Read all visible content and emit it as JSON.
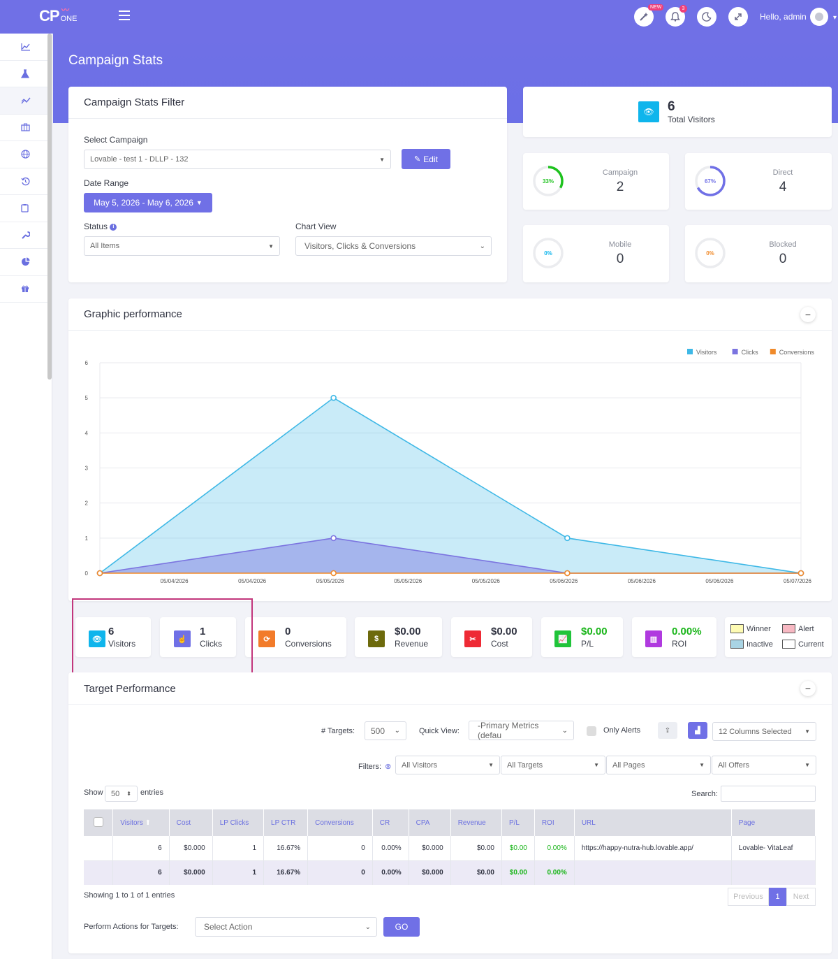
{
  "topbar": {
    "logo_main": "CP",
    "logo_sub": "ONE",
    "new_badge": "NEW",
    "notif_count": "3",
    "greeting": "Hello, admin"
  },
  "page": {
    "title": "Campaign Stats"
  },
  "sidebar": {
    "items": [
      {
        "icon": "line-chart-icon"
      },
      {
        "icon": "flask-icon"
      },
      {
        "icon": "trend-icon"
      },
      {
        "icon": "briefcase-icon"
      },
      {
        "icon": "globe-icon"
      },
      {
        "icon": "history-icon"
      },
      {
        "icon": "clipboard-icon"
      },
      {
        "icon": "wrench-icon"
      },
      {
        "icon": "pie-icon"
      },
      {
        "icon": "gift-icon"
      }
    ]
  },
  "filter": {
    "title": "Campaign Stats Filter",
    "select_campaign_label": "Select Campaign",
    "campaign_value": "Lovable - test 1  -  DLLP  -  132",
    "edit_label": "Edit",
    "date_range_label": "Date Range",
    "date_range_value": "May 5, 2026 - May 6, 2026",
    "status_label": "Status",
    "status_value": "All Items",
    "chart_view_label": "Chart View",
    "chart_view_value": "Visitors, Clicks & Conversions"
  },
  "stats": {
    "total_visitors_value": "6",
    "total_visitors_label": "Total Visitors",
    "campaign": {
      "label": "Campaign",
      "value": "2",
      "pct": "33%",
      "fraction": 0.33,
      "color": "#1ec21e"
    },
    "direct": {
      "label": "Direct",
      "value": "4",
      "pct": "67%",
      "fraction": 0.67,
      "color": "#7070e6"
    },
    "mobile": {
      "label": "Mobile",
      "value": "0",
      "pct": "0%",
      "fraction": 0,
      "color": "#0fb5ec"
    },
    "blocked": {
      "label": "Blocked",
      "value": "0",
      "pct": "0%",
      "fraction": 0,
      "color": "#f08a2a"
    }
  },
  "graph": {
    "title": "Graphic performance"
  },
  "chart_data": {
    "type": "area",
    "x": [
      "05/04/2026",
      "05/05/2026",
      "05/06/2026",
      "05/07/2026"
    ],
    "tick_labels": [
      "05/04/2026",
      "05/04/2026",
      "05/05/2026",
      "05/05/2026",
      "05/05/2026",
      "05/06/2026",
      "05/06/2026",
      "05/06/2026",
      "05/07/2026"
    ],
    "series": [
      {
        "name": "Visitors",
        "values": [
          0,
          5,
          1,
          0
        ],
        "color": "#3eb8e6"
      },
      {
        "name": "Clicks",
        "values": [
          0,
          1,
          0,
          0
        ],
        "color": "#7b74e0"
      },
      {
        "name": "Conversions",
        "values": [
          0,
          0,
          0,
          0
        ],
        "color": "#f08a2a"
      }
    ],
    "ylim": [
      0,
      6
    ],
    "yticks": [
      "0",
      "1",
      "2",
      "3",
      "4",
      "5",
      "6"
    ],
    "legend": "top-right",
    "grid": true
  },
  "tiles": {
    "visitors": {
      "value": "6",
      "label": "Visitors"
    },
    "clicks": {
      "value": "1",
      "label": "Clicks"
    },
    "conversions": {
      "value": "0",
      "label": "Conversions"
    },
    "revenue": {
      "value": "$0.00",
      "label": "Revenue"
    },
    "cost": {
      "value": "$0.00",
      "label": "Cost"
    },
    "pl": {
      "value": "$0.00",
      "label": "P/L"
    },
    "roi": {
      "value": "0.00%",
      "label": "ROI"
    }
  },
  "legend_keys": {
    "winner": "Winner",
    "alert": "Alert",
    "inactive": "Inactive",
    "current": "Current"
  },
  "targets": {
    "title": "Target Performance",
    "targets_label": "# Targets:",
    "targets_value": "500",
    "quick_view_label": "Quick View:",
    "quick_view_value": "-Primary Metrics (defau",
    "only_alerts_label": "Only Alerts",
    "columns_value": "12 Columns Selected",
    "filters_label": "Filters:",
    "filter_visitors": "All Visitors",
    "filter_targets": "All Targets",
    "filter_pages": "All Pages",
    "filter_offers": "All Offers",
    "show_label": "Show",
    "show_value": "50",
    "entries_label": "entries",
    "search_label": "Search:",
    "columns": [
      "Visitors",
      "Cost",
      "LP Clicks",
      "LP CTR",
      "Conversions",
      "CR",
      "CPA",
      "Revenue",
      "P/L",
      "ROI",
      "URL",
      "Page"
    ],
    "rows": [
      [
        "6",
        "$0.000",
        "1",
        "16.67%",
        "0",
        "0.00%",
        "$0.000",
        "$0.00",
        "$0.00",
        "0.00%",
        "https://happy-nutra-hub.lovable.app/",
        "Lovable- VitaLeaf"
      ]
    ],
    "totals": [
      "6",
      "$0.000",
      "1",
      "16.67%",
      "0",
      "0.00%",
      "$0.000",
      "$0.00",
      "$0.00",
      "0.00%",
      "",
      ""
    ],
    "showing": "Showing 1 to 1 of 1 entries",
    "prev": "Previous",
    "page": "1",
    "next": "Next",
    "actions_label": "Perform Actions for Targets:",
    "action_value": "Select Action",
    "go_label": "GO"
  }
}
